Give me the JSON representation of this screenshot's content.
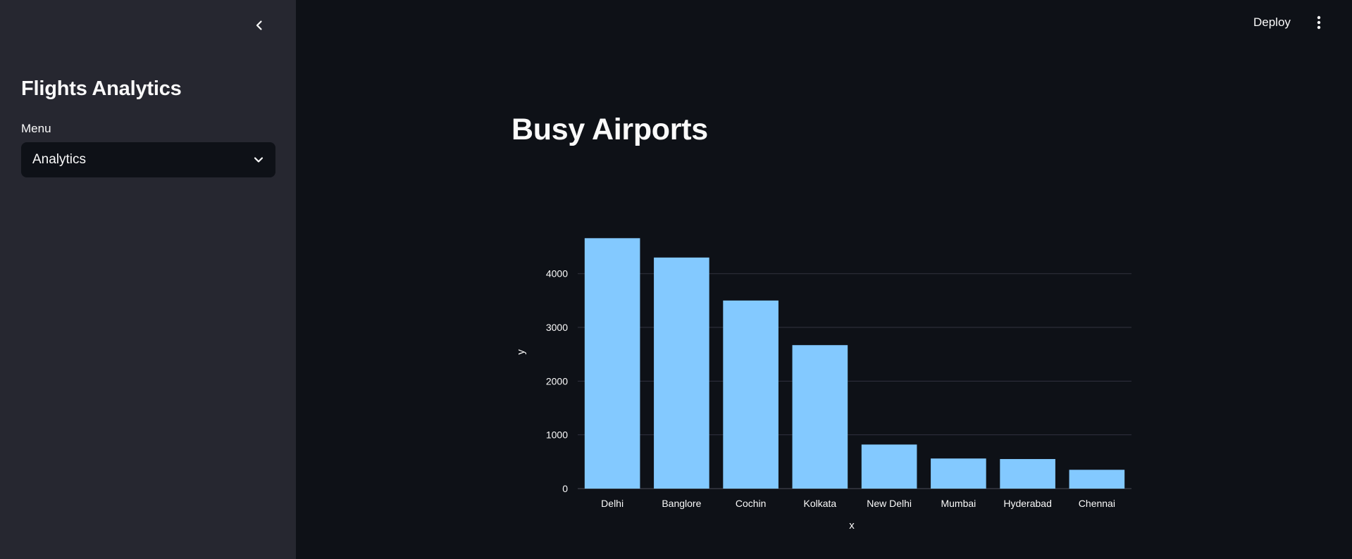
{
  "sidebar": {
    "title": "Flights Analytics",
    "menu_label": "Menu",
    "menu_selected": "Analytics"
  },
  "header": {
    "deploy_label": "Deploy"
  },
  "main": {
    "title": "Busy Airports"
  },
  "colors": {
    "background": "#0e1117",
    "sidebar": "#262730",
    "bar": "#83c9ff",
    "grid": "#31333f"
  },
  "icons": {
    "collapse": "chevron-left-icon",
    "dropdown": "chevron-down-icon",
    "more": "vertical-ellipsis-icon"
  },
  "chart_data": {
    "type": "bar",
    "categories": [
      "Delhi",
      "Banglore",
      "Cochin",
      "Kolkata",
      "New Delhi",
      "Mumbai",
      "Hyderabad",
      "Chennai"
    ],
    "values": [
      4660,
      4300,
      3500,
      2670,
      820,
      560,
      550,
      350
    ],
    "title": "",
    "xlabel": "x",
    "ylabel": "y",
    "yticks": [
      0,
      1000,
      2000,
      3000,
      4000
    ],
    "ylim": [
      0,
      4900
    ],
    "grid": true,
    "color": "#83c9ff"
  }
}
